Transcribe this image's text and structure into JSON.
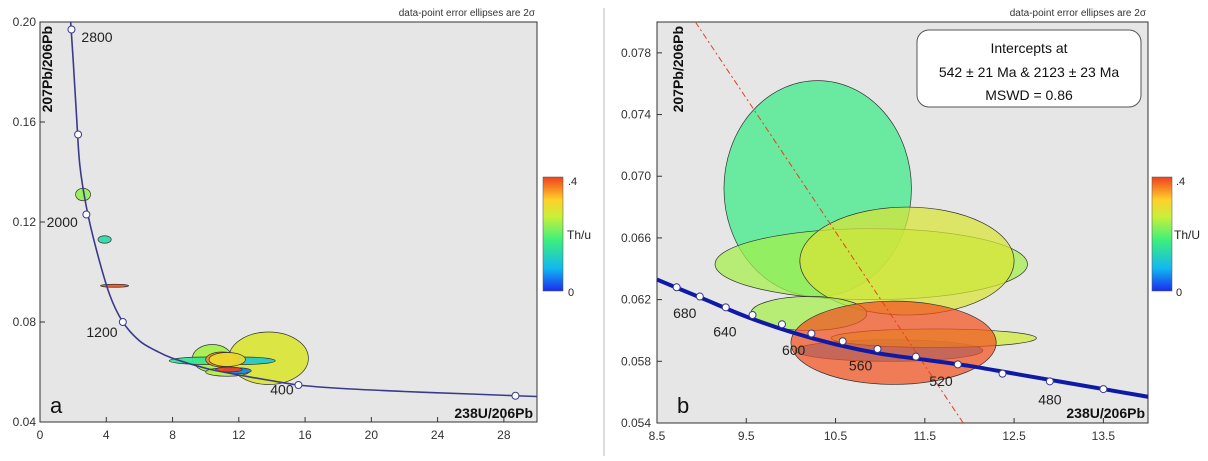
{
  "chart_data": [
    {
      "type": "scatter",
      "panel_label": "a",
      "note": "data-point error ellipses are 2σ",
      "xlabel": "238U/206Pb",
      "ylabel": "207Pb/206Pb",
      "xlim": [
        0,
        30
      ],
      "ylim": [
        0.04,
        0.2
      ],
      "xticks": [
        0,
        4,
        8,
        12,
        16,
        20,
        24,
        28
      ],
      "yticks": [
        0.04,
        0.08,
        0.12,
        0.16,
        0.2
      ],
      "ytick_labels": [
        "0.04",
        "0.08",
        "0.12",
        "0.16",
        "0.20"
      ],
      "concordia": [
        [
          1.85,
          0.2
        ],
        [
          2.0,
          0.185
        ],
        [
          2.2,
          0.163
        ],
        [
          2.4,
          0.143
        ],
        [
          2.8,
          0.126
        ],
        [
          3.4,
          0.109
        ],
        [
          4.2,
          0.091
        ],
        [
          5,
          0.08
        ],
        [
          6,
          0.0725
        ],
        [
          7,
          0.0685
        ],
        [
          8,
          0.0655
        ],
        [
          10,
          0.0615
        ],
        [
          12,
          0.0588
        ],
        [
          14,
          0.0565
        ],
        [
          15.6,
          0.0548
        ],
        [
          18,
          0.0535
        ],
        [
          22,
          0.0522
        ],
        [
          26,
          0.0512
        ],
        [
          28.7,
          0.0505
        ],
        [
          30,
          0.0502
        ]
      ],
      "concordia_markers": [
        [
          1.9,
          0.197
        ],
        [
          2.3,
          0.155
        ],
        [
          2.8,
          0.123
        ],
        [
          5,
          0.08
        ],
        [
          15.6,
          0.0548
        ],
        [
          28.7,
          0.0505
        ]
      ],
      "age_labels": [
        {
          "text": "2800",
          "x": 2.5,
          "y": 0.192
        },
        {
          "text": "2000",
          "x": 0.4,
          "y": 0.118
        },
        {
          "text": "1200",
          "x": 2.8,
          "y": 0.074
        },
        {
          "text": "400",
          "x": 13.9,
          "y": 0.051
        }
      ],
      "ellipses": [
        {
          "x": 2.6,
          "y": 0.131,
          "sx": 0.45,
          "sy": 0.0025,
          "thu": 0.23
        },
        {
          "x": 3.9,
          "y": 0.113,
          "sx": 0.4,
          "sy": 0.0015,
          "thu": 0.14
        },
        {
          "x": 4.5,
          "y": 0.0945,
          "sx": 0.85,
          "sy": 0.0006,
          "thu": 0.39
        },
        {
          "x": 13.8,
          "y": 0.0655,
          "sx": 2.4,
          "sy": 0.0105,
          "thu": 0.28
        },
        {
          "x": 10.4,
          "y": 0.0655,
          "sx": 1.2,
          "sy": 0.0055,
          "thu": 0.24
        },
        {
          "x": 10.0,
          "y": 0.0645,
          "sx": 2.2,
          "sy": 0.0015,
          "thu": 0.16
        },
        {
          "x": 12.3,
          "y": 0.0645,
          "sx": 1.9,
          "sy": 0.0015,
          "thu": 0.11
        },
        {
          "x": 11.0,
          "y": 0.065,
          "sx": 1.0,
          "sy": 0.003,
          "thu": 0.36
        },
        {
          "x": 11.3,
          "y": 0.065,
          "sx": 1.1,
          "sy": 0.0028,
          "thu": 0.3
        },
        {
          "x": 11.3,
          "y": 0.06,
          "sx": 1.3,
          "sy": 0.0017,
          "thu": 0.25
        },
        {
          "x": 11.9,
          "y": 0.0605,
          "sx": 0.85,
          "sy": 0.0012,
          "thu": 0.05
        },
        {
          "x": 11.4,
          "y": 0.061,
          "sx": 0.8,
          "sy": 0.001,
          "thu": 0.4
        }
      ],
      "colorbar": {
        "label": "Th/u",
        "max_label": ".4",
        "min_label": "0",
        "min": 0,
        "max": 0.4
      }
    },
    {
      "type": "scatter",
      "panel_label": "b",
      "note": "data-point error ellipses are 2σ",
      "xlabel": "238U/206Pb",
      "ylabel": "207Pb/206Pb",
      "xlim": [
        8.5,
        14
      ],
      "ylim": [
        0.054,
        0.08
      ],
      "xticks": [
        8.5,
        9.5,
        10.5,
        11.5,
        12.5,
        13.5
      ],
      "yticks": [
        0.054,
        0.058,
        0.062,
        0.066,
        0.07,
        0.074,
        0.078
      ],
      "ytick_labels": [
        "0.054",
        "0.058",
        "0.062",
        "0.066",
        "0.070",
        "0.074",
        "0.078"
      ],
      "concordia": [
        [
          8.5,
          0.0633
        ],
        [
          9.0,
          0.0621
        ],
        [
          9.5,
          0.0609
        ],
        [
          10,
          0.0599
        ],
        [
          10.5,
          0.0591
        ],
        [
          11,
          0.0585
        ],
        [
          11.5,
          0.0581
        ],
        [
          12,
          0.0577
        ],
        [
          12.5,
          0.0572
        ],
        [
          13,
          0.0567
        ],
        [
          13.5,
          0.0562
        ],
        [
          14,
          0.0557
        ]
      ],
      "concordia_markers": [
        [
          8.72,
          0.0628
        ],
        [
          8.98,
          0.0622
        ],
        [
          9.27,
          0.0615
        ],
        [
          9.57,
          0.061
        ],
        [
          9.9,
          0.0604
        ],
        [
          10.23,
          0.0598
        ],
        [
          10.58,
          0.0593
        ],
        [
          10.97,
          0.0588
        ],
        [
          11.4,
          0.0583
        ],
        [
          11.87,
          0.0578
        ],
        [
          12.37,
          0.0572
        ],
        [
          12.9,
          0.0567
        ],
        [
          13.5,
          0.0562
        ]
      ],
      "age_labels": [
        {
          "text": "680",
          "x": 8.68,
          "y": 0.0608
        },
        {
          "text": "640",
          "x": 9.13,
          "y": 0.0596
        },
        {
          "text": "600",
          "x": 9.9,
          "y": 0.0584
        },
        {
          "text": "560",
          "x": 10.65,
          "y": 0.0574
        },
        {
          "text": "520",
          "x": 11.55,
          "y": 0.0564
        },
        {
          "text": "480",
          "x": 12.77,
          "y": 0.0552
        }
      ],
      "discordia": {
        "x1": 8.93,
        "y1": 0.08,
        "x2": 11.93,
        "y2": 0.054
      },
      "ellipses": [
        {
          "x": 10.3,
          "y": 0.0692,
          "sx": 1.05,
          "sy": 0.007,
          "thu": 0.17
        },
        {
          "x": 10.9,
          "y": 0.0643,
          "sx": 1.75,
          "sy": 0.0023,
          "thu": 0.24
        },
        {
          "x": 11.3,
          "y": 0.0645,
          "sx": 1.2,
          "sy": 0.0035,
          "thu": 0.28
        },
        {
          "x": 10.2,
          "y": 0.0611,
          "sx": 0.65,
          "sy": 0.0011,
          "thu": 0.24
        },
        {
          "x": 11.1,
          "y": 0.0587,
          "sx": 1.05,
          "sy": 0.0007,
          "thu": 0.05
        },
        {
          "x": 11.6,
          "y": 0.0595,
          "sx": 1.15,
          "sy": 0.0006,
          "thu": 0.27
        },
        {
          "x": 11.15,
          "y": 0.0592,
          "sx": 1.15,
          "sy": 0.0027,
          "thu": 0.39
        }
      ],
      "colorbar": {
        "label": "Th/U",
        "max_label": ".4",
        "min_label": "0",
        "min": 0,
        "max": 0.4
      },
      "intercept_box": {
        "line1": "Intercepts at",
        "line2": "542 ± 21  Ma & 2123 ± 23  Ma",
        "line3": "MSWD = 0.86"
      }
    }
  ]
}
